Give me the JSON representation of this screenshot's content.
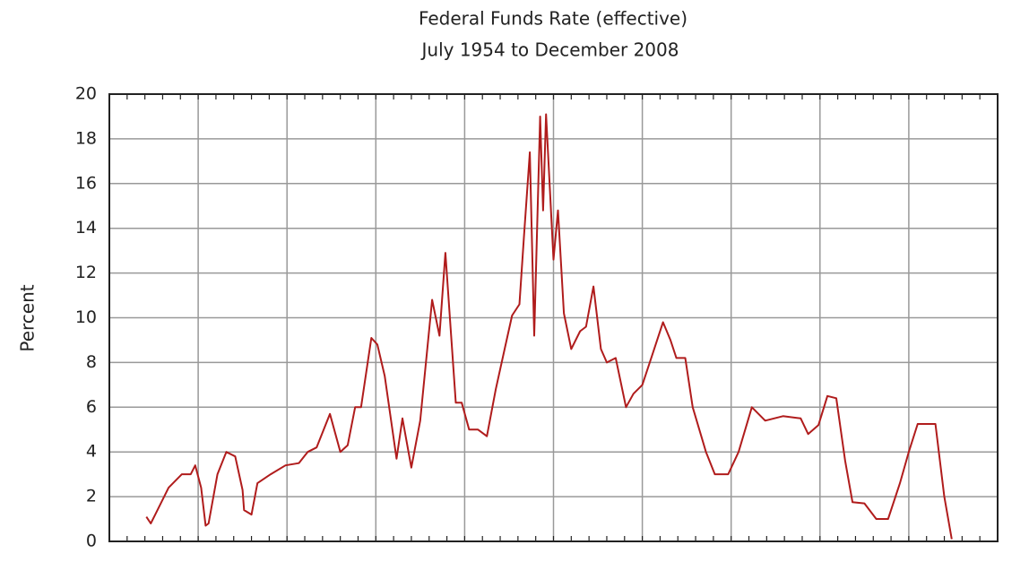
{
  "chart_data": {
    "type": "line",
    "title": "Federal Funds Rate (effective)",
    "subtitle": "July 1954 to December 2008",
    "y_label": "Percent",
    "x": [
      1954.5,
      1954.8,
      1955.1,
      1956.0,
      1956.9,
      1957.5,
      1957.8,
      1958.2,
      1958.5,
      1958.7,
      1959.3,
      1959.9,
      1960.5,
      1961.0,
      1961.1,
      1961.6,
      1962.0,
      1962.9,
      1963.9,
      1964.8,
      1965.4,
      1966.0,
      1966.9,
      1967.6,
      1968.1,
      1968.6,
      1969.0,
      1969.7,
      1970.1,
      1970.6,
      1971.4,
      1971.8,
      1972.4,
      1973.0,
      1973.8,
      1974.3,
      1974.7,
      1975.4,
      1975.8,
      1976.3,
      1976.9,
      1977.5,
      1978.1,
      1978.7,
      1979.2,
      1979.7,
      1980.0,
      1980.4,
      1980.7,
      1981.1,
      1981.3,
      1981.5,
      1982.0,
      1982.3,
      1982.7,
      1983.2,
      1983.8,
      1984.2,
      1984.7,
      1985.2,
      1985.6,
      1986.2,
      1986.9,
      1987.4,
      1988.0,
      1988.7,
      1989.4,
      1989.9,
      1990.3,
      1990.9,
      1991.4,
      1992.3,
      1992.9,
      1993.8,
      1994.5,
      1995.4,
      1996.3,
      1997.5,
      1998.7,
      1999.2,
      1999.9,
      2000.5,
      2001.1,
      2001.7,
      2002.2,
      2003.0,
      2003.8,
      2004.6,
      2005.4,
      2006.0,
      2006.6,
      2007.8,
      2008.4,
      2008.9
    ],
    "series": [
      {
        "color": "#b01c1c",
        "values": [
          1.1,
          0.8,
          1.2,
          2.4,
          3.0,
          3.0,
          3.4,
          2.4,
          0.7,
          0.8,
          3.0,
          4.0,
          3.8,
          2.3,
          1.4,
          1.2,
          2.6,
          3.0,
          3.4,
          3.5,
          4.0,
          4.2,
          5.7,
          4.0,
          4.3,
          6.0,
          6.0,
          9.1,
          8.8,
          7.4,
          3.7,
          5.5,
          3.3,
          5.4,
          10.8,
          9.2,
          12.9,
          6.2,
          6.2,
          5.0,
          5.0,
          4.7,
          6.8,
          8.6,
          10.1,
          10.6,
          13.6,
          17.4,
          9.2,
          19.0,
          14.8,
          19.1,
          12.6,
          14.8,
          10.2,
          8.6,
          9.4,
          9.6,
          11.4,
          8.6,
          8.0,
          8.2,
          6.0,
          6.6,
          7.0,
          8.4,
          9.8,
          9.0,
          8.2,
          8.2,
          6.0,
          4.0,
          3.0,
          3.0,
          4.0,
          6.0,
          5.4,
          5.6,
          5.5,
          4.8,
          5.2,
          6.5,
          6.4,
          3.6,
          1.75,
          1.7,
          1.0,
          1.0,
          2.6,
          4.0,
          5.25,
          5.25,
          2.0,
          0.1
        ]
      }
    ],
    "xlim": [
      1952,
      2012
    ],
    "ylim": [
      0,
      20
    ],
    "yticks": [
      0,
      2,
      4,
      6,
      8,
      10,
      12,
      14,
      16,
      18,
      20
    ],
    "grid": true
  }
}
